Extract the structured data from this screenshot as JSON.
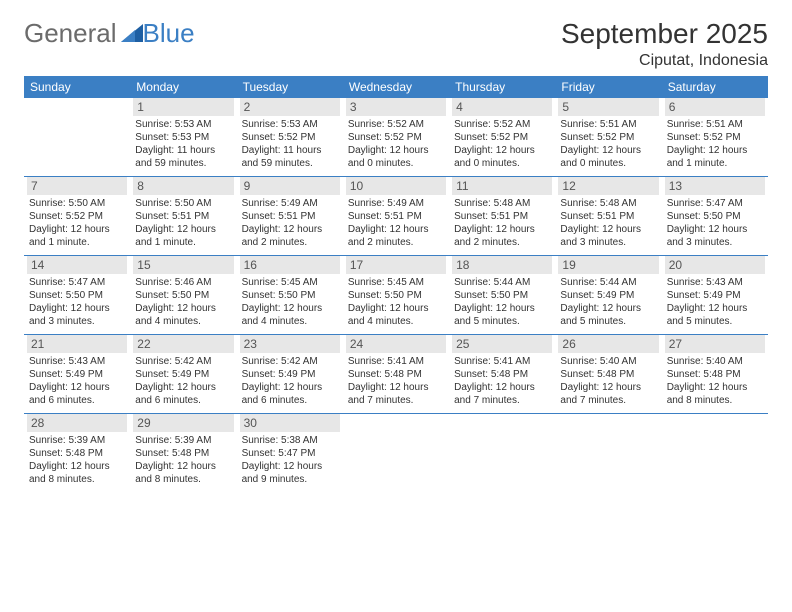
{
  "logo": {
    "part1": "General",
    "part2": "Blue"
  },
  "title": "September 2025",
  "location": "Ciputat, Indonesia",
  "colors": {
    "header_bg": "#3b7fc4",
    "header_text": "#ffffff",
    "daynum_bg": "#e7e7e7",
    "border": "#3b7fc4",
    "logo_gray": "#6b6b6b",
    "logo_blue": "#3b7fc4"
  },
  "day_names": [
    "Sunday",
    "Monday",
    "Tuesday",
    "Wednesday",
    "Thursday",
    "Friday",
    "Saturday"
  ],
  "weeks": [
    [
      null,
      {
        "n": "1",
        "sr": "Sunrise: 5:53 AM",
        "ss": "Sunset: 5:53 PM",
        "dl": "Daylight: 11 hours and 59 minutes."
      },
      {
        "n": "2",
        "sr": "Sunrise: 5:53 AM",
        "ss": "Sunset: 5:52 PM",
        "dl": "Daylight: 11 hours and 59 minutes."
      },
      {
        "n": "3",
        "sr": "Sunrise: 5:52 AM",
        "ss": "Sunset: 5:52 PM",
        "dl": "Daylight: 12 hours and 0 minutes."
      },
      {
        "n": "4",
        "sr": "Sunrise: 5:52 AM",
        "ss": "Sunset: 5:52 PM",
        "dl": "Daylight: 12 hours and 0 minutes."
      },
      {
        "n": "5",
        "sr": "Sunrise: 5:51 AM",
        "ss": "Sunset: 5:52 PM",
        "dl": "Daylight: 12 hours and 0 minutes."
      },
      {
        "n": "6",
        "sr": "Sunrise: 5:51 AM",
        "ss": "Sunset: 5:52 PM",
        "dl": "Daylight: 12 hours and 1 minute."
      }
    ],
    [
      {
        "n": "7",
        "sr": "Sunrise: 5:50 AM",
        "ss": "Sunset: 5:52 PM",
        "dl": "Daylight: 12 hours and 1 minute."
      },
      {
        "n": "8",
        "sr": "Sunrise: 5:50 AM",
        "ss": "Sunset: 5:51 PM",
        "dl": "Daylight: 12 hours and 1 minute."
      },
      {
        "n": "9",
        "sr": "Sunrise: 5:49 AM",
        "ss": "Sunset: 5:51 PM",
        "dl": "Daylight: 12 hours and 2 minutes."
      },
      {
        "n": "10",
        "sr": "Sunrise: 5:49 AM",
        "ss": "Sunset: 5:51 PM",
        "dl": "Daylight: 12 hours and 2 minutes."
      },
      {
        "n": "11",
        "sr": "Sunrise: 5:48 AM",
        "ss": "Sunset: 5:51 PM",
        "dl": "Daylight: 12 hours and 2 minutes."
      },
      {
        "n": "12",
        "sr": "Sunrise: 5:48 AM",
        "ss": "Sunset: 5:51 PM",
        "dl": "Daylight: 12 hours and 3 minutes."
      },
      {
        "n": "13",
        "sr": "Sunrise: 5:47 AM",
        "ss": "Sunset: 5:50 PM",
        "dl": "Daylight: 12 hours and 3 minutes."
      }
    ],
    [
      {
        "n": "14",
        "sr": "Sunrise: 5:47 AM",
        "ss": "Sunset: 5:50 PM",
        "dl": "Daylight: 12 hours and 3 minutes."
      },
      {
        "n": "15",
        "sr": "Sunrise: 5:46 AM",
        "ss": "Sunset: 5:50 PM",
        "dl": "Daylight: 12 hours and 4 minutes."
      },
      {
        "n": "16",
        "sr": "Sunrise: 5:45 AM",
        "ss": "Sunset: 5:50 PM",
        "dl": "Daylight: 12 hours and 4 minutes."
      },
      {
        "n": "17",
        "sr": "Sunrise: 5:45 AM",
        "ss": "Sunset: 5:50 PM",
        "dl": "Daylight: 12 hours and 4 minutes."
      },
      {
        "n": "18",
        "sr": "Sunrise: 5:44 AM",
        "ss": "Sunset: 5:50 PM",
        "dl": "Daylight: 12 hours and 5 minutes."
      },
      {
        "n": "19",
        "sr": "Sunrise: 5:44 AM",
        "ss": "Sunset: 5:49 PM",
        "dl": "Daylight: 12 hours and 5 minutes."
      },
      {
        "n": "20",
        "sr": "Sunrise: 5:43 AM",
        "ss": "Sunset: 5:49 PM",
        "dl": "Daylight: 12 hours and 5 minutes."
      }
    ],
    [
      {
        "n": "21",
        "sr": "Sunrise: 5:43 AM",
        "ss": "Sunset: 5:49 PM",
        "dl": "Daylight: 12 hours and 6 minutes."
      },
      {
        "n": "22",
        "sr": "Sunrise: 5:42 AM",
        "ss": "Sunset: 5:49 PM",
        "dl": "Daylight: 12 hours and 6 minutes."
      },
      {
        "n": "23",
        "sr": "Sunrise: 5:42 AM",
        "ss": "Sunset: 5:49 PM",
        "dl": "Daylight: 12 hours and 6 minutes."
      },
      {
        "n": "24",
        "sr": "Sunrise: 5:41 AM",
        "ss": "Sunset: 5:48 PM",
        "dl": "Daylight: 12 hours and 7 minutes."
      },
      {
        "n": "25",
        "sr": "Sunrise: 5:41 AM",
        "ss": "Sunset: 5:48 PM",
        "dl": "Daylight: 12 hours and 7 minutes."
      },
      {
        "n": "26",
        "sr": "Sunrise: 5:40 AM",
        "ss": "Sunset: 5:48 PM",
        "dl": "Daylight: 12 hours and 7 minutes."
      },
      {
        "n": "27",
        "sr": "Sunrise: 5:40 AM",
        "ss": "Sunset: 5:48 PM",
        "dl": "Daylight: 12 hours and 8 minutes."
      }
    ],
    [
      {
        "n": "28",
        "sr": "Sunrise: 5:39 AM",
        "ss": "Sunset: 5:48 PM",
        "dl": "Daylight: 12 hours and 8 minutes."
      },
      {
        "n": "29",
        "sr": "Sunrise: 5:39 AM",
        "ss": "Sunset: 5:48 PM",
        "dl": "Daylight: 12 hours and 8 minutes."
      },
      {
        "n": "30",
        "sr": "Sunrise: 5:38 AM",
        "ss": "Sunset: 5:47 PM",
        "dl": "Daylight: 12 hours and 9 minutes."
      },
      null,
      null,
      null,
      null
    ]
  ]
}
